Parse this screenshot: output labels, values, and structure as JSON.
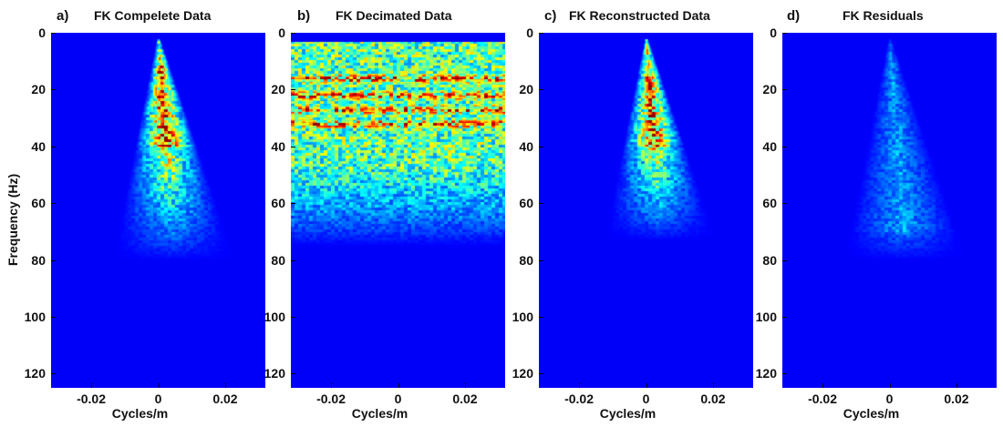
{
  "ylabel": "Frequency (Hz)",
  "xlabel": "Cycles/m",
  "colormap": "jet",
  "background_color": "#0d1f8f",
  "chart_data": [
    {
      "type": "heatmap",
      "letter": "a)",
      "title": "FK Compelete Data",
      "xlabel": "Cycles/m",
      "ylabel": "Frequency (Hz)",
      "xlim": [
        -0.032,
        0.032
      ],
      "ylim": [
        0,
        125
      ],
      "yticks": [
        0,
        20,
        40,
        60,
        80,
        100,
        120
      ],
      "xticks": [
        -0.02,
        0,
        0.02
      ],
      "xtick_labels": [
        "-0.02",
        "0",
        "0.02"
      ],
      "y_reversed": true,
      "energy": {
        "kind": "cone",
        "apex_f": 2,
        "apex_k": 0.0,
        "max_f": 72,
        "strength": 1.0,
        "peak_f": [
          14,
          40
        ]
      }
    },
    {
      "type": "heatmap",
      "letter": "b)",
      "title": "FK Decimated Data",
      "xlabel": "Cycles/m",
      "ylabel": "",
      "xlim": [
        -0.032,
        0.032
      ],
      "ylim": [
        0,
        125
      ],
      "yticks": [
        0,
        20,
        40,
        60,
        80,
        100,
        120
      ],
      "xticks": [
        -0.02,
        0,
        0.02
      ],
      "xtick_labels": [
        "-0.02",
        "0",
        "0.02"
      ],
      "y_reversed": true,
      "energy": {
        "kind": "bands",
        "min_f": 3,
        "max_f": 75,
        "strong_bands_f": [
          16,
          22,
          27,
          32
        ],
        "strength": 0.9
      }
    },
    {
      "type": "heatmap",
      "letter": "c)",
      "title": "FK Reconstructed Data",
      "xlabel": "Cycles/m",
      "ylabel": "",
      "xlim": [
        -0.032,
        0.032
      ],
      "ylim": [
        0,
        125
      ],
      "yticks": [
        0,
        20,
        40,
        60,
        80,
        100,
        120
      ],
      "xticks": [
        -0.02,
        0,
        0.02
      ],
      "xtick_labels": [
        "-0.02",
        "0",
        "0.02"
      ],
      "y_reversed": true,
      "energy": {
        "kind": "cone",
        "apex_f": 2,
        "apex_k": 0.0,
        "max_f": 65,
        "strength": 0.95,
        "peak_f": [
          14,
          40
        ]
      }
    },
    {
      "type": "heatmap",
      "letter": "d)",
      "title": "FK Residuals",
      "xlabel": "Cycles/m",
      "ylabel": "",
      "xlim": [
        -0.032,
        0.032
      ],
      "ylim": [
        0,
        125
      ],
      "yticks": [
        0,
        20,
        40,
        60,
        80,
        100,
        120
      ],
      "xticks": [
        -0.02,
        0,
        0.02
      ],
      "xtick_labels": [
        "-0.02",
        "0",
        "0.02"
      ],
      "y_reversed": true,
      "energy": {
        "kind": "cone",
        "apex_f": 2,
        "apex_k": 0.0,
        "max_f": 72,
        "strength": 0.22,
        "peak_f": [
          10,
          70
        ]
      }
    }
  ]
}
